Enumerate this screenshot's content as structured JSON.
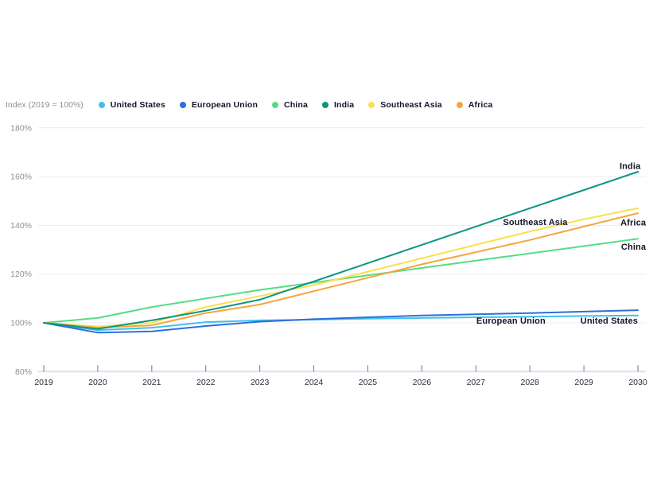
{
  "chart_data": {
    "type": "line",
    "title": "",
    "index_label": "Index (2019 = 100%)",
    "x": [
      2019,
      2020,
      2021,
      2022,
      2023,
      2024,
      2025,
      2026,
      2027,
      2028,
      2029,
      2030
    ],
    "series": [
      {
        "name": "United States",
        "color": "#3EC1EE",
        "values": [
          100,
          97.0,
          98.0,
          100.3,
          101.0,
          101.3,
          101.7,
          102.0,
          102.3,
          102.5,
          102.8,
          103.0
        ]
      },
      {
        "name": "European Union",
        "color": "#2E6FDB",
        "values": [
          100,
          96.0,
          96.5,
          98.7,
          100.5,
          101.5,
          102.3,
          103.0,
          103.5,
          104.0,
          104.6,
          105.2
        ]
      },
      {
        "name": "China",
        "color": "#56DD83",
        "values": [
          100,
          102.0,
          106.5,
          110.0,
          113.5,
          116.5,
          119.5,
          122.5,
          125.5,
          128.5,
          131.5,
          134.5
        ]
      },
      {
        "name": "India",
        "color": "#0A9486",
        "values": [
          100,
          97.5,
          101.0,
          105.0,
          109.5,
          117.0,
          124.5,
          132.0,
          139.5,
          147.0,
          154.5,
          162.0
        ]
      },
      {
        "name": "Southeast Asia",
        "color": "#F8E14B",
        "values": [
          100,
          98.5,
          100.0,
          106.5,
          111.0,
          115.5,
          121.0,
          126.5,
          132.0,
          137.5,
          142.5,
          147.0
        ]
      },
      {
        "name": "Africa",
        "color": "#F7A43C",
        "values": [
          100,
          98.0,
          99.0,
          104.0,
          107.5,
          113.0,
          118.5,
          124.0,
          129.0,
          134.0,
          139.5,
          145.0
        ]
      }
    ],
    "draw_order": [
      "United States",
      "European Union",
      "China",
      "Southeast Asia",
      "Africa",
      "India"
    ],
    "annotations": [
      {
        "text": "India",
        "year": 2030.05,
        "value": 164.3,
        "anchor": "end"
      },
      {
        "text": "Southeast Asia",
        "year": 2028.1,
        "value": 141.3,
        "anchor": "middle"
      },
      {
        "text": "Africa",
        "year": 2030.15,
        "value": 141.1,
        "anchor": "end"
      },
      {
        "text": "China",
        "year": 2030.15,
        "value": 131.2,
        "anchor": "end"
      },
      {
        "text": "European Union",
        "year": 2027.65,
        "value": 100.8,
        "anchor": "middle"
      },
      {
        "text": "United States",
        "year": 2030.0,
        "value": 100.8,
        "anchor": "end"
      }
    ],
    "y_ticks": [
      "180%",
      "160%",
      "140%",
      "120%",
      "100%",
      "80%"
    ],
    "y_tick_values": [
      180,
      160,
      140,
      120,
      100,
      80
    ],
    "ylim": [
      80,
      180
    ],
    "x_ticks": [
      "2019",
      "2020",
      "2021",
      "2022",
      "2023",
      "2024",
      "2025",
      "2026",
      "2027",
      "2028",
      "2029",
      "2030"
    ],
    "grid": true,
    "legend_position": "top"
  },
  "colors": {
    "background": "#ffffff",
    "grid": "#ececef",
    "axis_line": "#d8e2f0",
    "tick_mark": "#76767c",
    "y_label": "#8f8f98",
    "x_label": "#2c2c34",
    "label_text": "#13132b"
  }
}
